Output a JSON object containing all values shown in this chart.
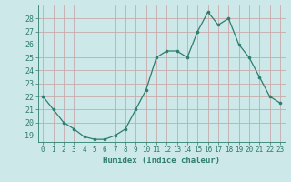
{
  "x": [
    0,
    1,
    2,
    3,
    4,
    5,
    6,
    7,
    8,
    9,
    10,
    11,
    12,
    13,
    14,
    15,
    16,
    17,
    18,
    19,
    20,
    21,
    22,
    23
  ],
  "y": [
    22,
    21,
    20,
    19.5,
    18.9,
    18.7,
    18.7,
    19,
    19.5,
    21,
    22.5,
    25,
    25.5,
    25.5,
    25,
    27,
    28.5,
    27.5,
    28,
    26,
    25,
    23.5,
    22,
    21.5
  ],
  "line_color": "#2e7d6e",
  "marker_color": "#2e7d6e",
  "bg_color": "#cce8e8",
  "grid_color": "#c8aaaa",
  "xlabel": "Humidex (Indice chaleur)",
  "ylim": [
    18.5,
    29.0
  ],
  "xlim": [
    -0.5,
    23.5
  ],
  "xticks": [
    0,
    1,
    2,
    3,
    4,
    5,
    6,
    7,
    8,
    9,
    10,
    11,
    12,
    13,
    14,
    15,
    16,
    17,
    18,
    19,
    20,
    21,
    22,
    23
  ],
  "yticks": [
    19,
    20,
    21,
    22,
    23,
    24,
    25,
    26,
    27,
    28
  ]
}
